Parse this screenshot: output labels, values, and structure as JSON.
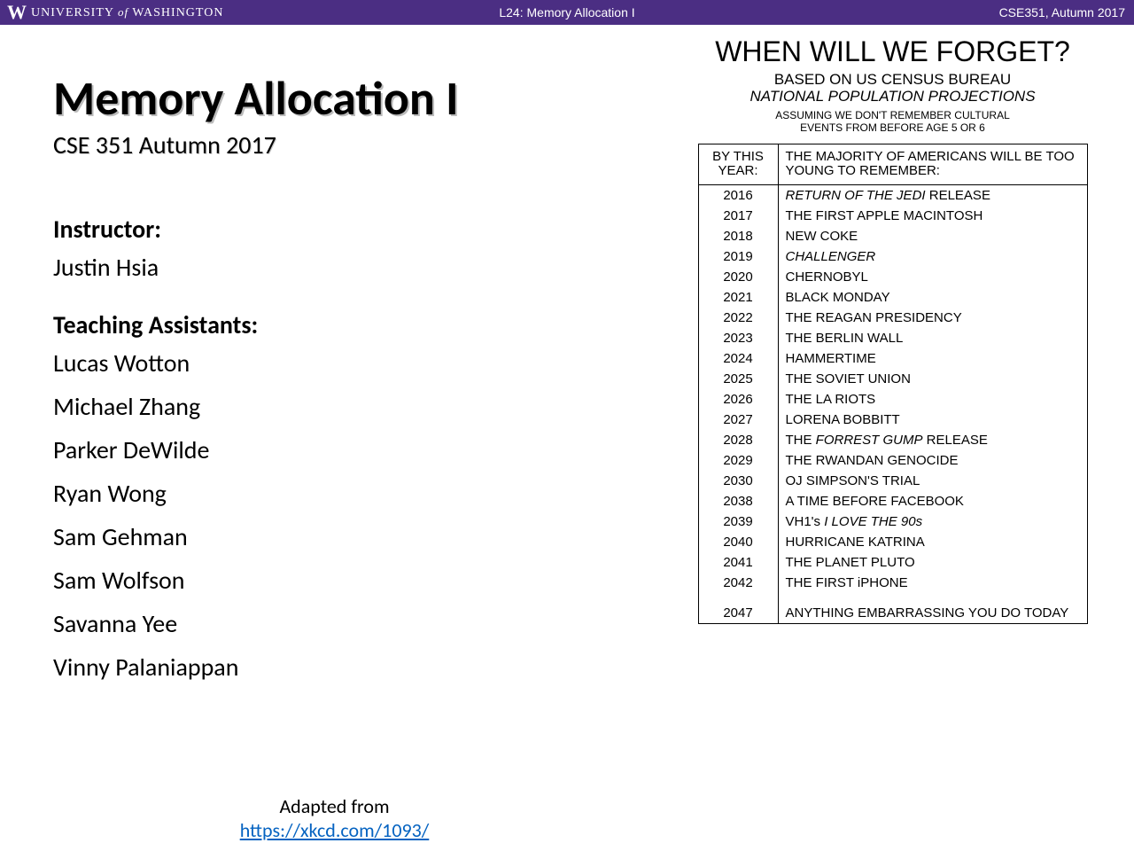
{
  "header": {
    "logo_letter": "W",
    "university_pre": "UNIVERSITY",
    "university_of": "of",
    "university_post": "WASHINGTON",
    "center": "L24:  Memory Allocation I",
    "right": "CSE351, Autumn 2017",
    "bg_color": "#4b2e83"
  },
  "slide": {
    "title": "Memory Allocation I",
    "subtitle": "CSE 351 Autumn 2017",
    "instructor_label": "Instructor:",
    "instructor": "Justin Hsia",
    "ta_label": "Teaching Assistants:",
    "tas": [
      "Lucas Wotton",
      "Michael Zhang",
      "Parker DeWilde",
      "Ryan Wong",
      "Sam Gehman",
      "Sam Wolfson",
      "Savanna Yee",
      "Vinny Palaniappan"
    ],
    "adapted_text": "Adapted from",
    "adapted_link": "https://xkcd.com/1093/"
  },
  "comic": {
    "title": "WHEN WILL WE FORGET?",
    "sub1_line1": "BASED ON US CENSUS BUREAU",
    "sub1_line2": "NATIONAL POPULATION PROJECTIONS",
    "sub2": "ASSUMING WE DON'T REMEMBER CULTURAL EVENTS FROM BEFORE AGE 5 OR 6",
    "head_c1": "BY THIS YEAR:",
    "head_c2": "THE MAJORITY OF AMERICANS WILL BE TOO YOUNG TO REMEMBER:",
    "rows": [
      {
        "year": "2016",
        "event_html": "<span class='ital'>RETURN OF THE JEDI</span> RELEASE"
      },
      {
        "year": "2017",
        "event_html": "THE FIRST APPLE MACINTOSH"
      },
      {
        "year": "2018",
        "event_html": "NEW COKE"
      },
      {
        "year": "2019",
        "event_html": "<span class='ital'>CHALLENGER</span>"
      },
      {
        "year": "2020",
        "event_html": "CHERNOBYL"
      },
      {
        "year": "2021",
        "event_html": "BLACK MONDAY"
      },
      {
        "year": "2022",
        "event_html": "THE REAGAN PRESIDENCY"
      },
      {
        "year": "2023",
        "event_html": "THE BERLIN WALL"
      },
      {
        "year": "2024",
        "event_html": "HAMMERTIME"
      },
      {
        "year": "2025",
        "event_html": "THE SOVIET UNION"
      },
      {
        "year": "2026",
        "event_html": "THE LA RIOTS"
      },
      {
        "year": "2027",
        "event_html": "LORENA BOBBITT"
      },
      {
        "year": "2028",
        "event_html": "THE <span class='ital'>FORREST GUMP</span> RELEASE"
      },
      {
        "year": "2029",
        "event_html": "THE RWANDAN GENOCIDE"
      },
      {
        "year": "2030",
        "event_html": "OJ SIMPSON'S TRIAL"
      },
      {
        "year": "2038",
        "event_html": "A TIME BEFORE FACEBOOK"
      },
      {
        "year": "2039",
        "event_html": "VH1's <span class='ital'>I LOVE THE 90s</span>"
      },
      {
        "year": "2040",
        "event_html": "HURRICANE KATRINA"
      },
      {
        "year": "2041",
        "event_html": "THE PLANET PLUTO"
      },
      {
        "year": "2042",
        "event_html": "THE FIRST iPHONE"
      },
      {
        "year": "2047",
        "event_html": "ANYTHING EMBARRASSING YOU DO TODAY",
        "gap": true
      }
    ]
  }
}
